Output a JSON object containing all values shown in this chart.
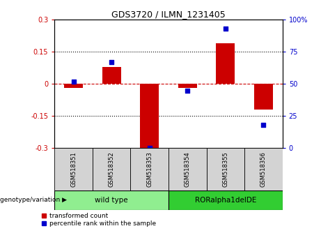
{
  "title": "GDS3720 / ILMN_1231405",
  "samples": [
    "GSM518351",
    "GSM518352",
    "GSM518353",
    "GSM518354",
    "GSM518355",
    "GSM518356"
  ],
  "transformed_count": [
    -0.02,
    0.08,
    -0.3,
    -0.02,
    0.19,
    -0.12
  ],
  "percentile_rank": [
    52,
    67,
    0,
    45,
    93,
    18
  ],
  "ylim_left": [
    -0.3,
    0.3
  ],
  "ylim_right": [
    0,
    100
  ],
  "yticks_left": [
    -0.3,
    -0.15,
    0,
    0.15,
    0.3
  ],
  "yticks_right": [
    0,
    25,
    50,
    75,
    100
  ],
  "bar_color": "#cc0000",
  "scatter_color": "#0000cc",
  "ref_line_color": "#cc0000",
  "dotted_line_color": "#000000",
  "group1_label": "wild type",
  "group2_label": "RORalpha1delDE",
  "group1_color": "#90ee90",
  "group2_color": "#32cd32",
  "sample_box_color": "#d3d3d3",
  "legend_red": "transformed count",
  "legend_blue": "percentile rank within the sample",
  "genotype_label": "genotype/variation"
}
